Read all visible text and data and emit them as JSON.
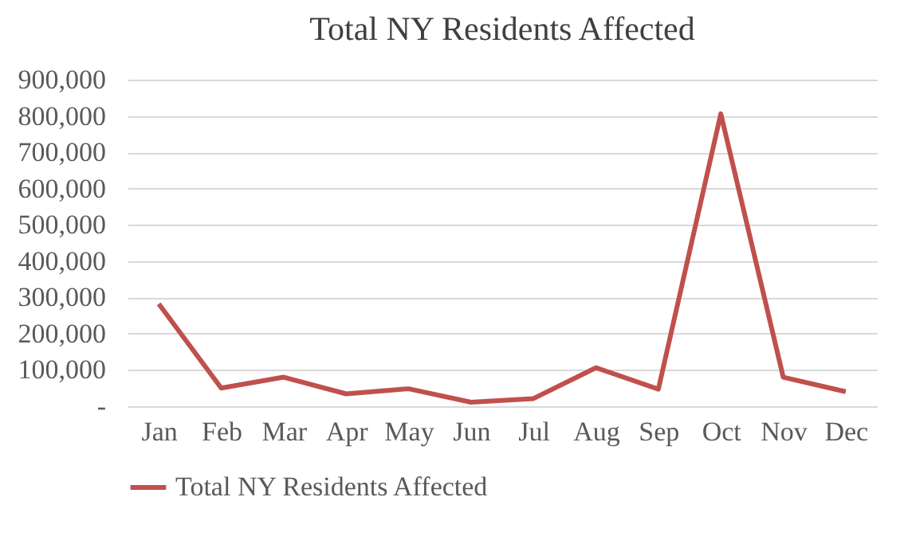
{
  "chart_data": {
    "type": "line",
    "title": "Total NY Residents Affected",
    "categories": [
      "Jan",
      "Feb",
      "Mar",
      "Apr",
      "May",
      "Jun",
      "Jul",
      "Aug",
      "Sep",
      "Oct",
      "Nov",
      "Dec"
    ],
    "series": [
      {
        "name": "Total NY Residents Affected",
        "color": "#c0504d",
        "values": [
          282000,
          50000,
          80000,
          34000,
          48000,
          11000,
          21000,
          106000,
          47000,
          806000,
          80000,
          40000
        ]
      }
    ],
    "ylim": [
      0,
      900000
    ],
    "yticks": [
      {
        "value": 0,
        "label": "-"
      },
      {
        "value": 100000,
        "label": "100,000"
      },
      {
        "value": 200000,
        "label": "200,000"
      },
      {
        "value": 300000,
        "label": "300,000"
      },
      {
        "value": 400000,
        "label": "400,000"
      },
      {
        "value": 500000,
        "label": "500,000"
      },
      {
        "value": 600000,
        "label": "600,000"
      },
      {
        "value": 700000,
        "label": "700,000"
      },
      {
        "value": 800000,
        "label": "800,000"
      },
      {
        "value": 900000,
        "label": "900,000"
      }
    ],
    "grid": "y",
    "legend": "bottom",
    "marker": "none",
    "line_style": "solid"
  }
}
